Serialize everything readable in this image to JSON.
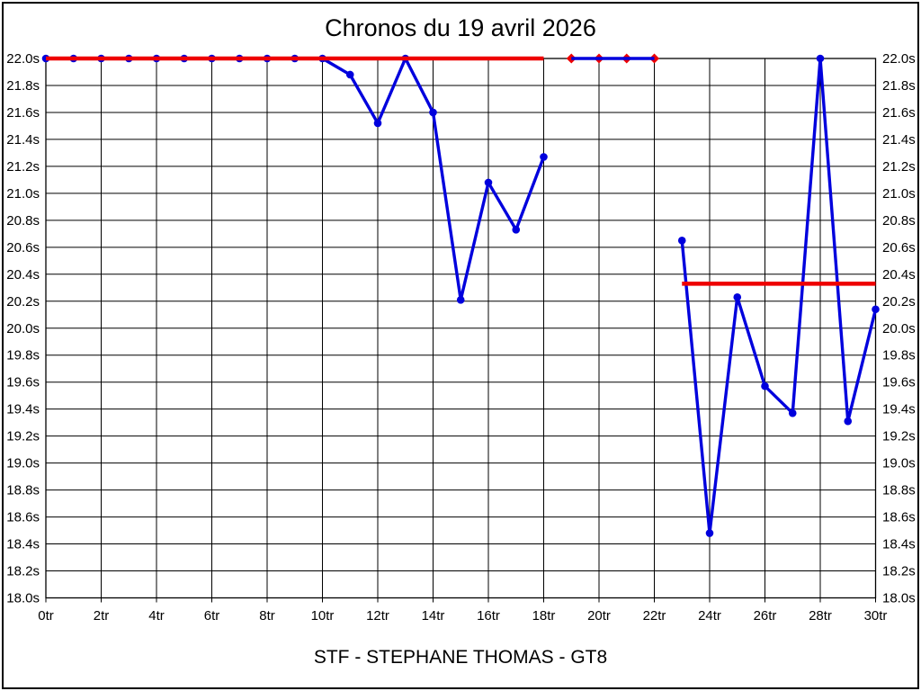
{
  "chart_data": {
    "type": "line",
    "title": "Chronos du 19 avril 2026",
    "footer": "STF - STEPHANE THOMAS - GT8",
    "grid": true,
    "legend": "none",
    "xlim": [
      0,
      30
    ],
    "ylim": [
      18.0,
      22.0
    ],
    "x_axis": {
      "ticks": [
        {
          "v": 0,
          "label": "0tr"
        },
        {
          "v": 2,
          "label": "2tr"
        },
        {
          "v": 4,
          "label": "4tr"
        },
        {
          "v": 6,
          "label": "6tr"
        },
        {
          "v": 8,
          "label": "8tr"
        },
        {
          "v": 10,
          "label": "10tr"
        },
        {
          "v": 12,
          "label": "12tr"
        },
        {
          "v": 14,
          "label": "14tr"
        },
        {
          "v": 16,
          "label": "16tr"
        },
        {
          "v": 18,
          "label": "18tr"
        },
        {
          "v": 20,
          "label": "20tr"
        },
        {
          "v": 22,
          "label": "22tr"
        },
        {
          "v": 24,
          "label": "24tr"
        },
        {
          "v": 26,
          "label": "26tr"
        },
        {
          "v": 28,
          "label": "28tr"
        },
        {
          "v": 30,
          "label": "30tr"
        }
      ]
    },
    "y_axis": {
      "ticks": [
        {
          "v": 22.0,
          "label": "22.0s"
        },
        {
          "v": 21.8,
          "label": "21.8s"
        },
        {
          "v": 21.6,
          "label": "21.6s"
        },
        {
          "v": 21.4,
          "label": "21.4s"
        },
        {
          "v": 21.2,
          "label": "21.2s"
        },
        {
          "v": 21.0,
          "label": "21.0s"
        },
        {
          "v": 20.8,
          "label": "20.8s"
        },
        {
          "v": 20.6,
          "label": "20.6s"
        },
        {
          "v": 20.4,
          "label": "20.4s"
        },
        {
          "v": 20.2,
          "label": "20.2s"
        },
        {
          "v": 20.0,
          "label": "20.0s"
        },
        {
          "v": 19.8,
          "label": "19.8s"
        },
        {
          "v": 19.6,
          "label": "19.6s"
        },
        {
          "v": 19.4,
          "label": "19.4s"
        },
        {
          "v": 19.2,
          "label": "19.2s"
        },
        {
          "v": 19.0,
          "label": "19.0s"
        },
        {
          "v": 18.8,
          "label": "18.8s"
        },
        {
          "v": 18.6,
          "label": "18.6s"
        },
        {
          "v": 18.4,
          "label": "18.4s"
        },
        {
          "v": 18.2,
          "label": "18.2s"
        },
        {
          "v": 18.0,
          "label": "18.0s"
        }
      ]
    },
    "colors": {
      "blue_series": "#0000dd",
      "red_reference": "#ee0000",
      "grid": "#000000"
    },
    "series": [
      {
        "name": "chronos",
        "color": "#0000dd",
        "marker": "circle",
        "segments": [
          {
            "markers": true,
            "x": [
              0,
              1,
              2,
              3,
              4,
              5,
              6,
              7,
              8,
              9,
              10,
              11,
              12,
              13,
              14,
              15,
              16,
              17,
              18
            ],
            "y": [
              22.0,
              22.0,
              22.0,
              22.0,
              22.0,
              22.0,
              22.0,
              22.0,
              22.0,
              22.0,
              22.0,
              21.88,
              21.52,
              22.0,
              21.6,
              20.21,
              21.08,
              20.73,
              21.27
            ]
          },
          {
            "markers": false,
            "x": [
              19,
              20,
              21,
              22
            ],
            "y": [
              22.0,
              22.0,
              22.0,
              22.0
            ]
          },
          {
            "markers": true,
            "x": [
              23,
              24,
              25,
              26,
              27,
              28,
              29,
              30
            ],
            "y": [
              20.65,
              18.48,
              20.23,
              19.57,
              19.37,
              22.0,
              19.31,
              20.14
            ]
          }
        ]
      },
      {
        "name": "reference",
        "color": "#ee0000",
        "marker": "diamond",
        "segments": [
          {
            "layer": "over",
            "markers": false,
            "x": [
              0,
              18
            ],
            "y": [
              22.0,
              22.0
            ]
          },
          {
            "layer": "under",
            "markers": true,
            "x": [
              19,
              20,
              21,
              22
            ],
            "y": [
              22.0,
              22.0,
              22.0,
              22.0
            ]
          },
          {
            "layer": "over",
            "markers": false,
            "x": [
              23,
              30
            ],
            "y": [
              20.33,
              20.33
            ]
          }
        ]
      }
    ]
  }
}
